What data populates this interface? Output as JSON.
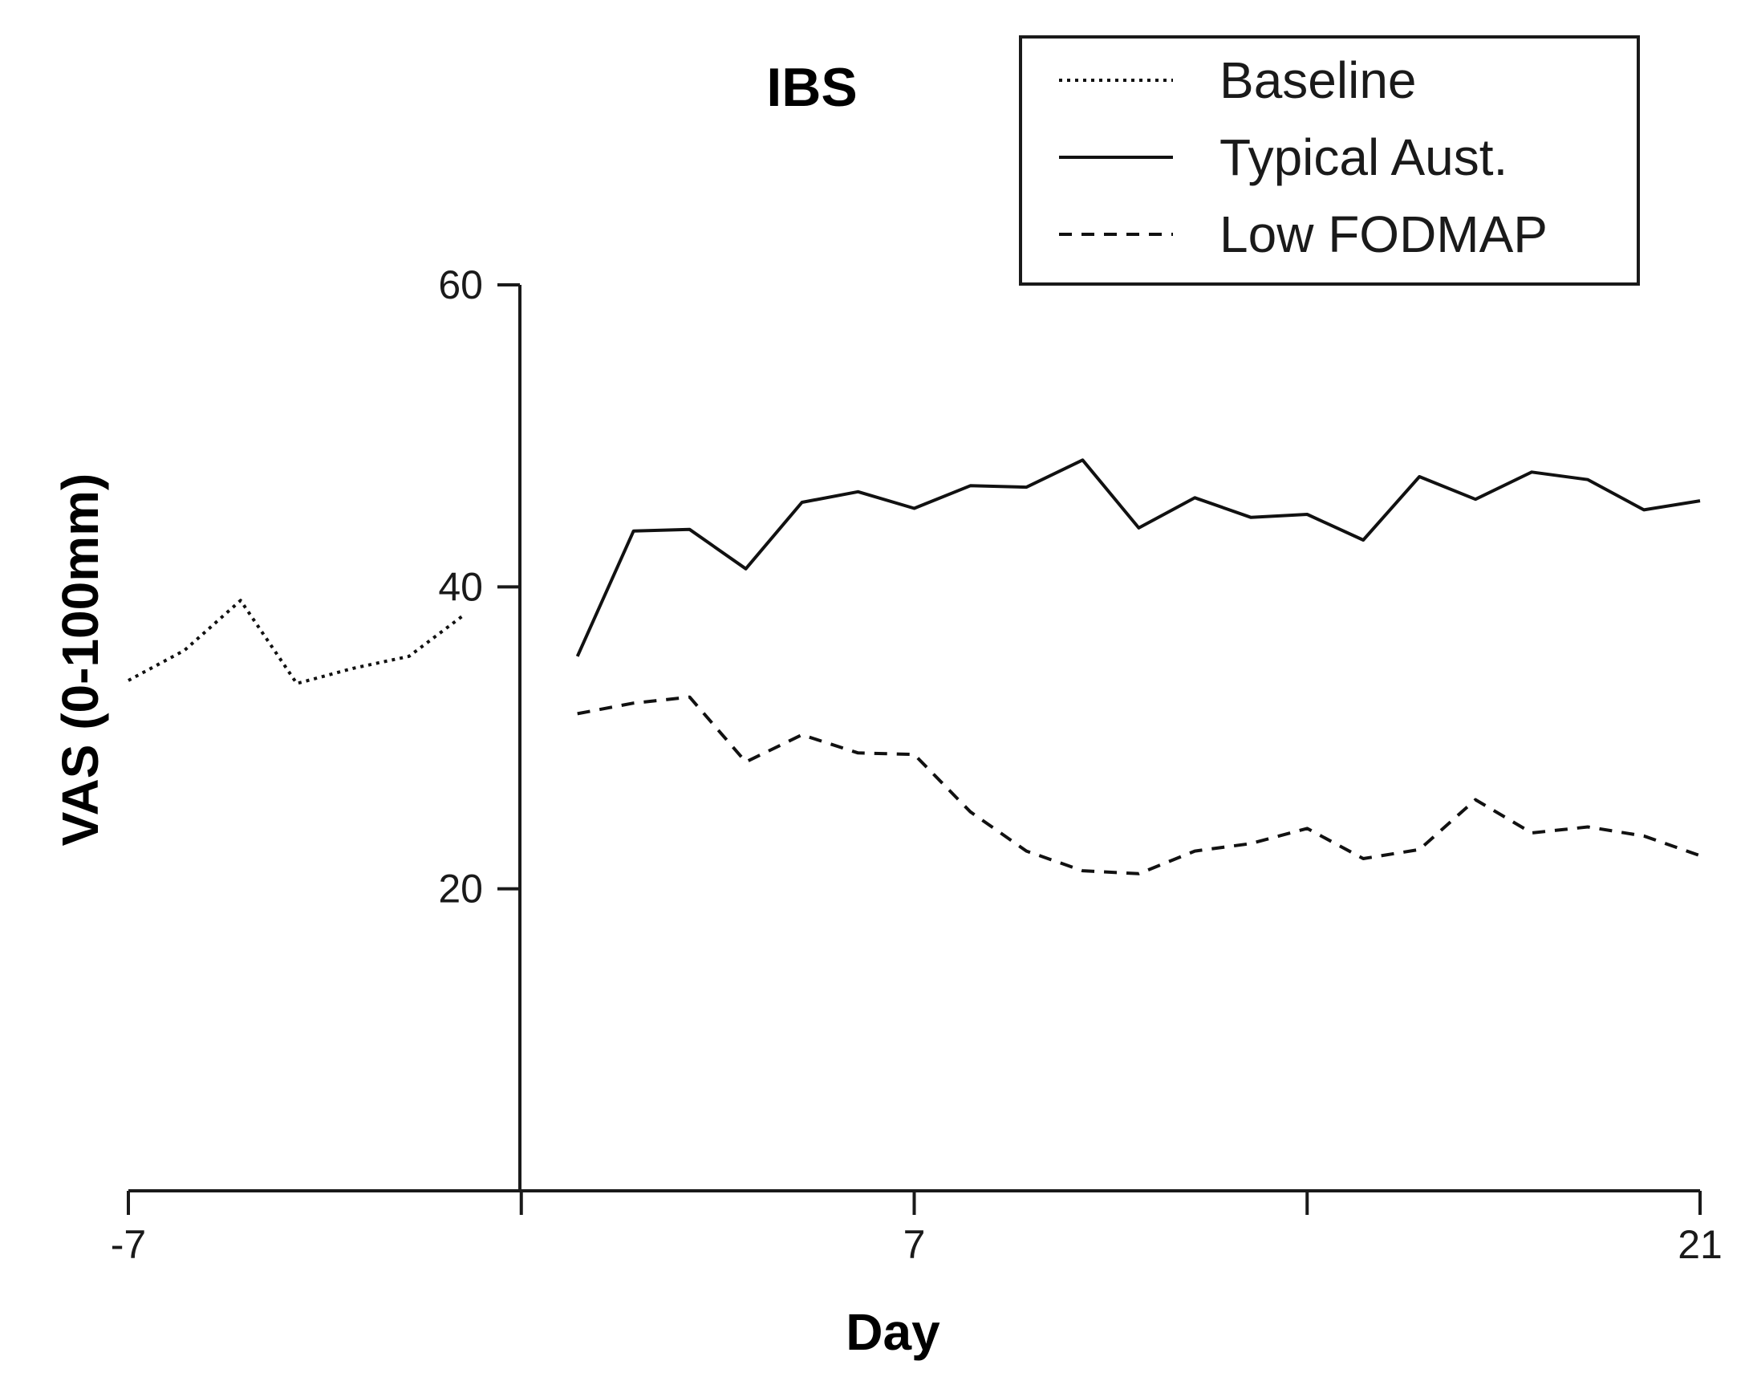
{
  "chart_data": {
    "type": "line",
    "title": "IBS",
    "xlabel": "Day",
    "ylabel": "VAS (0-100mm)",
    "xlim": [
      -7,
      21
    ],
    "ylim": [
      0,
      60
    ],
    "x_ticks": [
      -7,
      0,
      7,
      14,
      21
    ],
    "x_tick_labels": [
      "-7",
      "",
      "7",
      "",
      "21"
    ],
    "y_ticks": [
      20,
      40,
      60
    ],
    "y_tick_labels": [
      "20",
      "40",
      "60"
    ],
    "legend_position": "top-right",
    "series": [
      {
        "name": "Baseline",
        "style": "dotted",
        "x": [
          -7,
          -6,
          -5,
          -4,
          -3,
          -2,
          -1
        ],
        "y": [
          33.8,
          35.8,
          39.1,
          33.6,
          34.6,
          35.4,
          38.2
        ]
      },
      {
        "name": "Typical Aust.",
        "style": "solid",
        "x": [
          1,
          2,
          3,
          4,
          5,
          6,
          7,
          8,
          9,
          10,
          11,
          12,
          13,
          14,
          15,
          16,
          17,
          18,
          19,
          20,
          21
        ],
        "y": [
          35.4,
          43.7,
          43.8,
          41.2,
          45.6,
          46.3,
          45.2,
          46.7,
          46.6,
          48.4,
          43.9,
          45.9,
          44.6,
          44.8,
          43.1,
          47.3,
          45.8,
          47.6,
          47.1,
          45.1,
          45.7
        ]
      },
      {
        "name": "Low FODMAP",
        "style": "dashed",
        "x": [
          1,
          2,
          3,
          4,
          5,
          6,
          7,
          8,
          9,
          10,
          11,
          12,
          13,
          14,
          15,
          16,
          17,
          18,
          19,
          20,
          21
        ],
        "y": [
          31.6,
          32.3,
          32.7,
          28.4,
          30.2,
          29.0,
          28.9,
          25.1,
          22.5,
          21.2,
          21.0,
          22.5,
          23.0,
          24.0,
          22.0,
          22.6,
          25.9,
          23.7,
          24.1,
          23.5,
          22.2
        ]
      }
    ]
  }
}
